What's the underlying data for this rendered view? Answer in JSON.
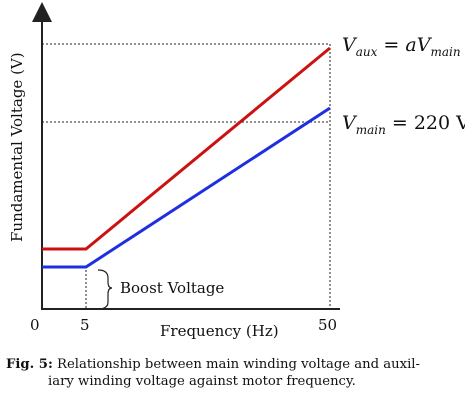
{
  "chart_data": {
    "type": "line",
    "xlabel": "Frequency (Hz)",
    "ylabel": "Fundamental Voltage (V)",
    "x_ticks": [
      "0",
      "5",
      "50"
    ],
    "series": [
      {
        "label_main": "V",
        "label_sub": "aux",
        "label_rhs": " = aV",
        "label_rhs_sub": "main",
        "color": "#cc1111",
        "points": [
          [
            0,
            1
          ],
          [
            5,
            1
          ],
          [
            50,
            4.35
          ]
        ]
      },
      {
        "label_main": "V",
        "label_sub": "main",
        "label_rhs": " = 220 V",
        "label_rhs_sub": "",
        "color": "#1f2fe0",
        "points": [
          [
            0,
            0.7
          ],
          [
            5,
            0.7
          ],
          [
            50,
            3.35
          ]
        ]
      }
    ],
    "annotation": "Boost Voltage",
    "dotted_guides": true
  },
  "caption": {
    "label": "Fig. 5:",
    "line1": "Relationship between main winding voltage and auxil-",
    "line2": "iary winding voltage against motor frequency."
  }
}
